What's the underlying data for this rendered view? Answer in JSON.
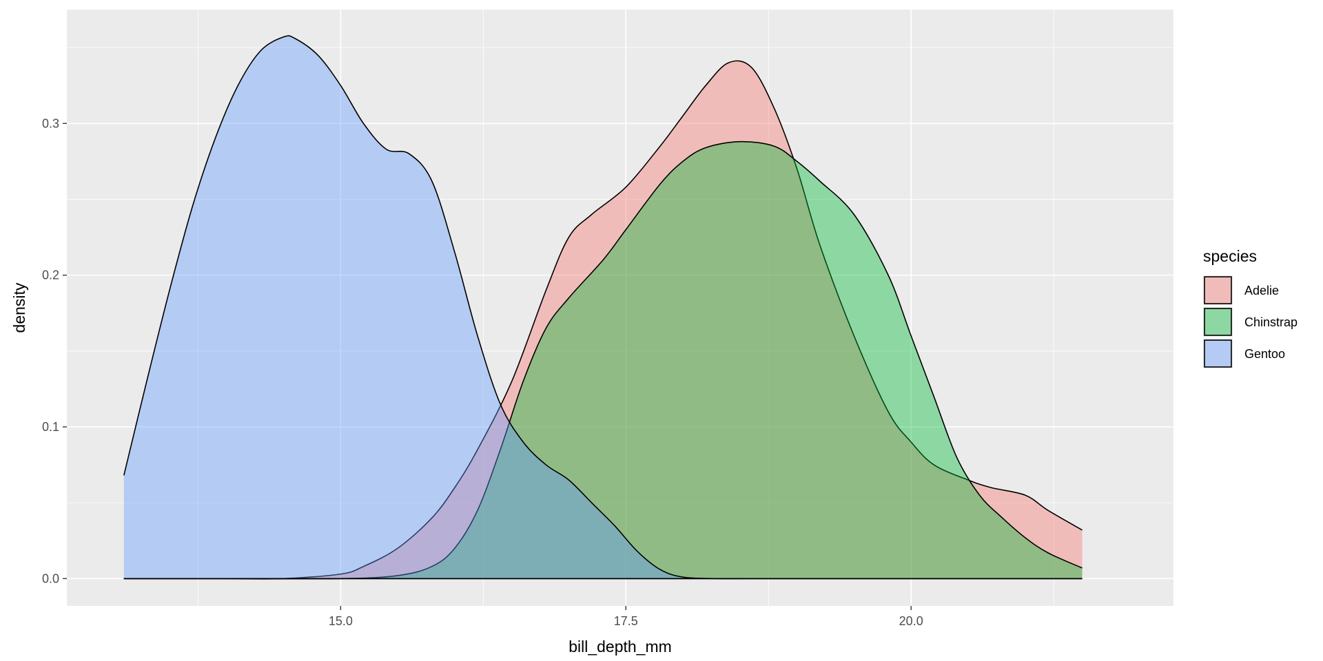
{
  "chart_data": {
    "type": "area",
    "xlabel": "bill_depth_mm",
    "ylabel": "density",
    "xlim": [
      12.6,
      22.3
    ],
    "ylim": [
      -0.018,
      0.375
    ],
    "x_ticks": [
      15.0,
      17.5,
      20.0
    ],
    "x_tick_labels": [
      "15.0",
      "17.5",
      "20.0"
    ],
    "x_minor_ticks": [
      13.75,
      16.25,
      18.75,
      21.25
    ],
    "y_ticks": [
      0.0,
      0.1,
      0.2,
      0.3
    ],
    "y_tick_labels": [
      "0.0",
      "0.1",
      "0.2",
      "0.3"
    ],
    "y_minor_ticks": [
      0.05,
      0.15,
      0.25,
      0.35
    ],
    "grid": true,
    "fill_alpha": 0.4,
    "legend": {
      "title": "species",
      "position": "right"
    },
    "series": [
      {
        "name": "Adelie",
        "color": "#F8766D",
        "x": [
          13.1,
          13.5,
          14.0,
          14.5,
          15.0,
          15.2,
          15.5,
          15.8,
          16.0,
          16.2,
          16.5,
          16.8,
          17.0,
          17.2,
          17.5,
          17.8,
          18.0,
          18.2,
          18.4,
          18.6,
          18.8,
          19.0,
          19.2,
          19.5,
          19.8,
          20.0,
          20.2,
          20.5,
          20.7,
          21.0,
          21.2,
          21.5
        ],
        "y": [
          0.0,
          0.0,
          0.0,
          0.0,
          0.003,
          0.008,
          0.02,
          0.04,
          0.06,
          0.085,
          0.13,
          0.19,
          0.225,
          0.24,
          0.258,
          0.285,
          0.305,
          0.325,
          0.34,
          0.337,
          0.31,
          0.27,
          0.22,
          0.16,
          0.11,
          0.09,
          0.075,
          0.065,
          0.06,
          0.055,
          0.045,
          0.032
        ]
      },
      {
        "name": "Chinstrap",
        "color": "#00BA38",
        "x": [
          13.1,
          14.0,
          15.0,
          15.5,
          15.8,
          16.0,
          16.2,
          16.4,
          16.6,
          16.8,
          17.0,
          17.3,
          17.5,
          17.8,
          18.0,
          18.2,
          18.5,
          18.8,
          19.0,
          19.2,
          19.5,
          19.8,
          20.0,
          20.2,
          20.4,
          20.6,
          20.8,
          21.0,
          21.2,
          21.5
        ],
        "y": [
          0.0,
          0.0,
          0.0,
          0.002,
          0.008,
          0.02,
          0.045,
          0.085,
          0.13,
          0.165,
          0.185,
          0.21,
          0.23,
          0.26,
          0.275,
          0.284,
          0.288,
          0.285,
          0.275,
          0.262,
          0.24,
          0.2,
          0.16,
          0.12,
          0.08,
          0.055,
          0.04,
          0.027,
          0.017,
          0.007
        ]
      },
      {
        "name": "Gentoo",
        "color": "#619CFF",
        "x": [
          13.1,
          13.3,
          13.5,
          13.7,
          13.9,
          14.1,
          14.3,
          14.5,
          14.6,
          14.8,
          15.0,
          15.2,
          15.4,
          15.6,
          15.8,
          16.0,
          16.2,
          16.4,
          16.6,
          16.8,
          17.0,
          17.2,
          17.4,
          17.6,
          17.8,
          18.0,
          18.3,
          18.6,
          19.0,
          19.5,
          20.0,
          21.0,
          21.5
        ],
        "y": [
          0.068,
          0.13,
          0.19,
          0.245,
          0.29,
          0.325,
          0.348,
          0.357,
          0.356,
          0.345,
          0.325,
          0.3,
          0.283,
          0.28,
          0.262,
          0.215,
          0.16,
          0.115,
          0.09,
          0.075,
          0.065,
          0.05,
          0.035,
          0.018,
          0.006,
          0.001,
          0.0,
          0.0,
          0.0,
          0.0,
          0.0,
          0.0,
          0.0
        ]
      }
    ]
  }
}
